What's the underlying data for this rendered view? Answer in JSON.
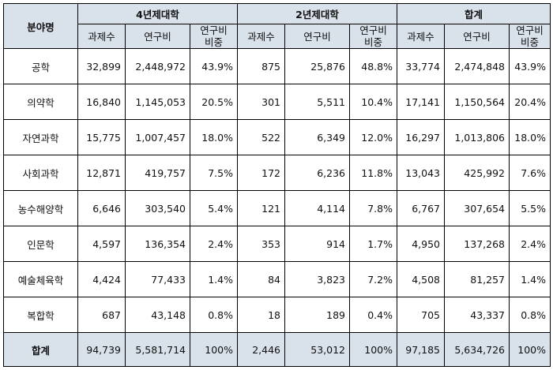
{
  "headers": {
    "field": "분야명",
    "groups": [
      "4년제대학",
      "2년제대학",
      "합계"
    ],
    "sub": [
      "과제수",
      "연구비",
      "연구비\n비중"
    ]
  },
  "rows": [
    {
      "field": "공학",
      "values": [
        "32,899",
        "2,448,972",
        "43.9%",
        "875",
        "25,876",
        "48.8%",
        "33,774",
        "2,474,848",
        "43.9%"
      ]
    },
    {
      "field": "의약학",
      "values": [
        "16,840",
        "1,145,053",
        "20.5%",
        "301",
        "5,511",
        "10.4%",
        "17,141",
        "1,150,564",
        "20.4%"
      ]
    },
    {
      "field": "자연과학",
      "values": [
        "15,775",
        "1,007,457",
        "18.0%",
        "522",
        "6,349",
        "12.0%",
        "16,297",
        "1,013,806",
        "18.0%"
      ]
    },
    {
      "field": "사회과학",
      "values": [
        "12,871",
        "419,757",
        "7.5%",
        "172",
        "6,236",
        "11.8%",
        "13,043",
        "425,992",
        "7.6%"
      ]
    },
    {
      "field": "농수해양학",
      "values": [
        "6,646",
        "303,540",
        "5.4%",
        "121",
        "4,114",
        "7.8%",
        "6,767",
        "307,654",
        "5.5%"
      ]
    },
    {
      "field": "인문학",
      "values": [
        "4,597",
        "136,354",
        "2.4%",
        "353",
        "914",
        "1.7%",
        "4,950",
        "137,268",
        "2.4%"
      ]
    },
    {
      "field": "예술체육학",
      "values": [
        "4,424",
        "77,433",
        "1.4%",
        "84",
        "3,823",
        "7.2%",
        "4,508",
        "81,257",
        "1.4%"
      ]
    },
    {
      "field": "복합학",
      "values": [
        "687",
        "43,148",
        "0.8%",
        "18",
        "189",
        "0.4%",
        "705",
        "43,337",
        "0.8%"
      ]
    }
  ],
  "total": {
    "field": "합계",
    "values": [
      "94,739",
      "5,581,714",
      "100%",
      "2,446",
      "53,012",
      "100%",
      "97,185",
      "5,634,726",
      "100%"
    ]
  }
}
